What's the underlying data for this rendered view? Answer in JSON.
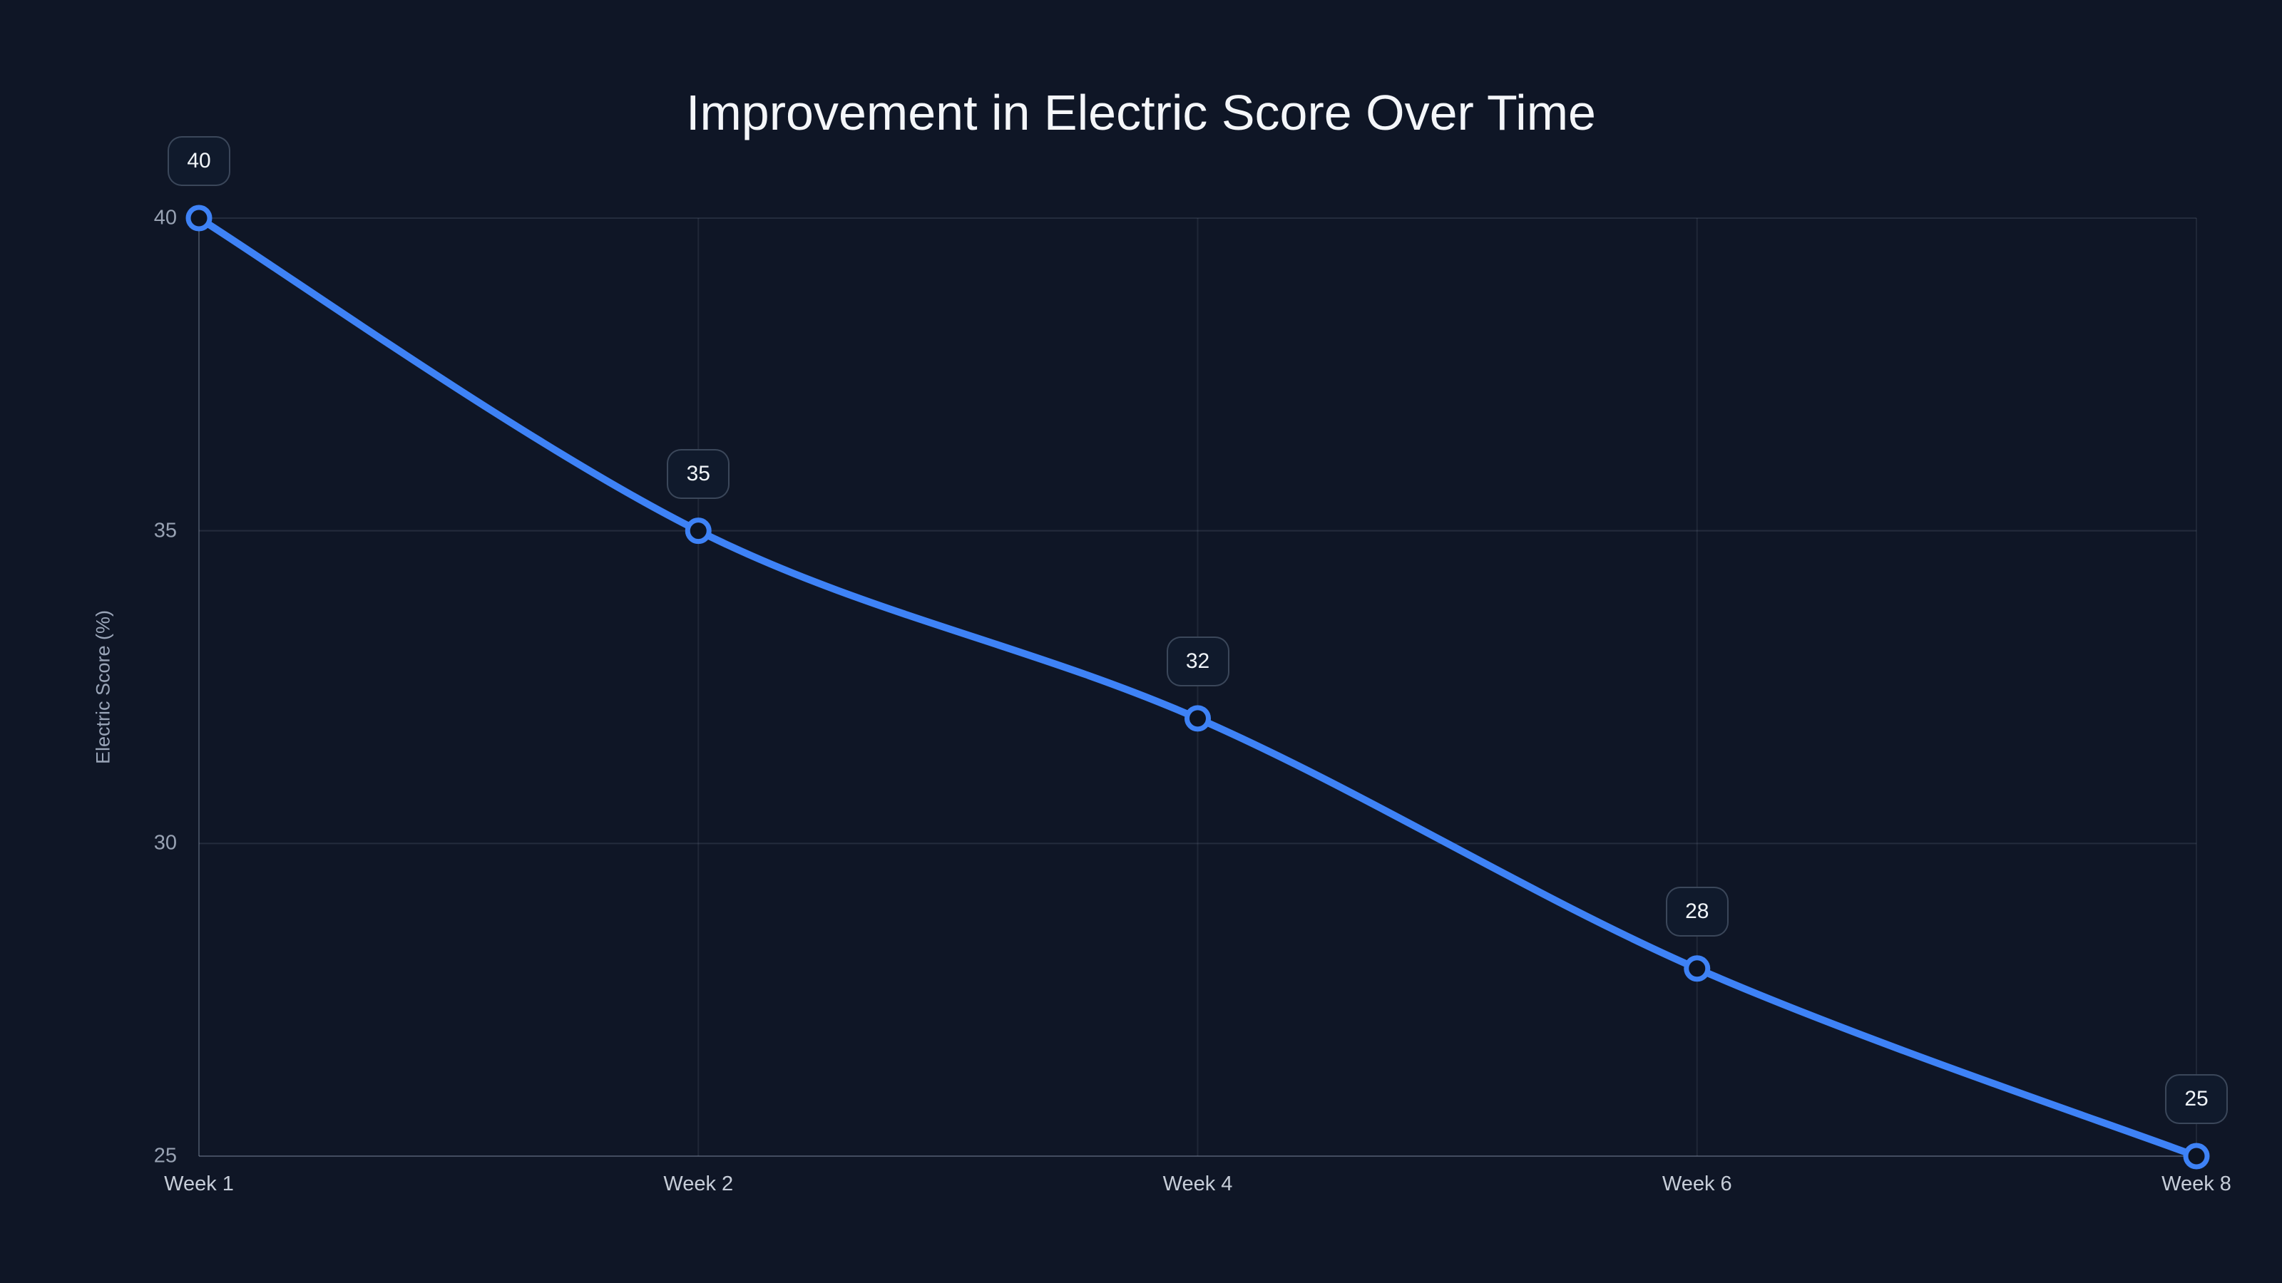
{
  "chart_data": {
    "type": "line",
    "title": "Improvement in Electric Score Over Time",
    "categories": [
      "Week 1",
      "Week 2",
      "Week 4",
      "Week 6",
      "Week 8"
    ],
    "series": [
      {
        "name": "Electric Score",
        "values": [
          40,
          35,
          32,
          28,
          25
        ]
      }
    ],
    "point_labels": [
      "40",
      "35",
      "32",
      "28",
      "25"
    ],
    "xlabel": "",
    "ylabel": "Electric Score (%)",
    "ylim": [
      25,
      40
    ],
    "yticks": [
      40,
      35,
      30,
      25
    ],
    "grid": true,
    "legend_position": "none",
    "smooth": true,
    "colors": {
      "background": "#0f1626",
      "line": "#3e82f6",
      "marker_fill": "#0c1322",
      "grid_horizontal": "rgba(148,163,184,0.16)",
      "grid_vertical": "rgba(148,163,184,0.12)",
      "axis_line": "rgba(148,163,184,0.28)",
      "y_tick_label": "#98a2b3",
      "x_category_label": "#c6cdd8",
      "axis_name": "#9aa5b8",
      "title": "#f4f6f9",
      "badge_background": "#101a2c",
      "badge_border": "rgba(148,163,184,0.33)",
      "badge_text": "#f1f5f9"
    }
  }
}
